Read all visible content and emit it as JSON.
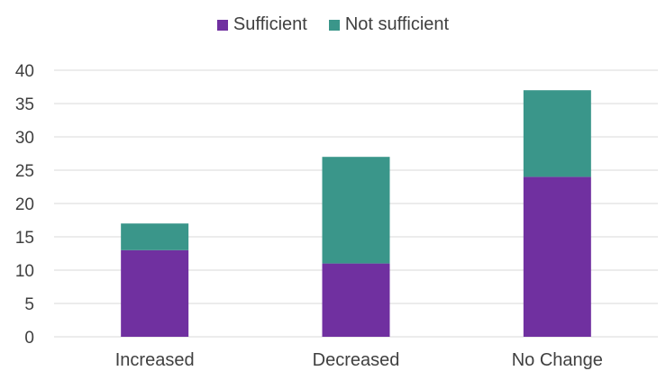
{
  "chart_data": {
    "type": "bar",
    "stacked": true,
    "title": "",
    "xlabel": "",
    "ylabel": "",
    "categories": [
      "Increased",
      "Decreased",
      "No Change"
    ],
    "series": [
      {
        "name": "Sufficient",
        "values": [
          13,
          11,
          24
        ],
        "color": "#7030A0"
      },
      {
        "name": "Not sufficient",
        "values": [
          4,
          16,
          13
        ],
        "color": "#3A968A"
      }
    ],
    "ylim": [
      0,
      40
    ],
    "yticks": [
      0,
      5,
      10,
      15,
      20,
      25,
      30,
      35,
      40
    ],
    "grid": true,
    "legend_position": "top"
  }
}
